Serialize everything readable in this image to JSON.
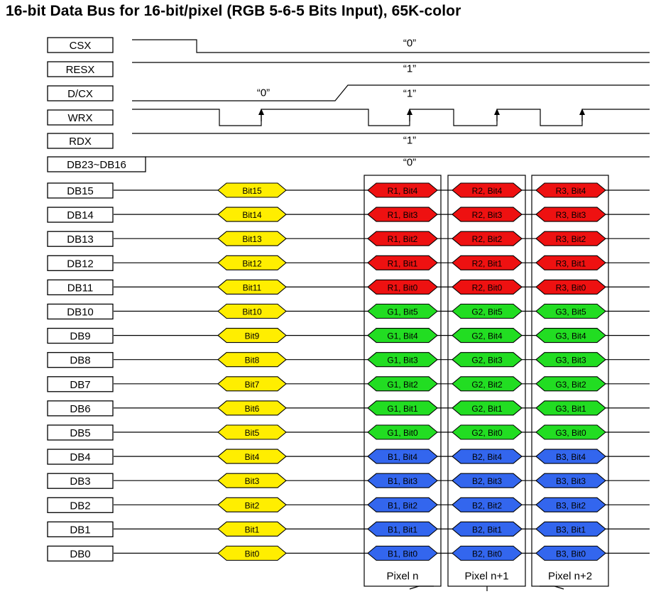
{
  "title": "16-bit Data Bus for 16-bit/pixel (RGB 5-6-5 Bits Input), 65K-color",
  "colors": {
    "red": "#ee1111",
    "green": "#22dd22",
    "blue": "#3366ee",
    "yellow": "#ffee00",
    "line": "#000000"
  },
  "control_signals": [
    {
      "name": "CSX",
      "value_label": "“0”"
    },
    {
      "name": "RESX",
      "value_label": "“1”"
    },
    {
      "name": "D/CX",
      "value_labels": [
        "“0”",
        "“1”"
      ]
    },
    {
      "name": "WRX",
      "value_label": ""
    },
    {
      "name": "RDX",
      "value_label": "“1”"
    },
    {
      "name": "DB23~DB16",
      "value_label": "“0”"
    }
  ],
  "data_lines": [
    {
      "name": "DB15",
      "bit": "Bit15",
      "p1": "R1, Bit4",
      "p2": "R2, Bit4",
      "p3": "R3, Bit4",
      "color": "red"
    },
    {
      "name": "DB14",
      "bit": "Bit14",
      "p1": "R1, Bit3",
      "p2": "R2, Bit3",
      "p3": "R3, Bit3",
      "color": "red"
    },
    {
      "name": "DB13",
      "bit": "Bit13",
      "p1": "R1, Bit2",
      "p2": "R2, Bit2",
      "p3": "R3, Bit2",
      "color": "red"
    },
    {
      "name": "DB12",
      "bit": "Bit12",
      "p1": "R1, Bit1",
      "p2": "R2, Bit1",
      "p3": "R3, Bit1",
      "color": "red"
    },
    {
      "name": "DB11",
      "bit": "Bit11",
      "p1": "R1, Bit0",
      "p2": "R2, Bit0",
      "p3": "R3, Bit0",
      "color": "red"
    },
    {
      "name": "DB10",
      "bit": "Bit10",
      "p1": "G1, Bit5",
      "p2": "G2, Bit5",
      "p3": "G3, Bit5",
      "color": "green"
    },
    {
      "name": "DB9",
      "bit": "Bit9",
      "p1": "G1, Bit4",
      "p2": "G2, Bit4",
      "p3": "G3, Bit4",
      "color": "green"
    },
    {
      "name": "DB8",
      "bit": "Bit8",
      "p1": "G1, Bit3",
      "p2": "G2, Bit3",
      "p3": "G3, Bit3",
      "color": "green"
    },
    {
      "name": "DB7",
      "bit": "Bit7",
      "p1": "G1, Bit2",
      "p2": "G2, Bit2",
      "p3": "G3, Bit2",
      "color": "green"
    },
    {
      "name": "DB6",
      "bit": "Bit6",
      "p1": "G1, Bit1",
      "p2": "G2, Bit1",
      "p3": "G3, Bit1",
      "color": "green"
    },
    {
      "name": "DB5",
      "bit": "Bit5",
      "p1": "G1, Bit0",
      "p2": "G2, Bit0",
      "p3": "G3, Bit0",
      "color": "green"
    },
    {
      "name": "DB4",
      "bit": "Bit4",
      "p1": "B1, Bit4",
      "p2": "B2, Bit4",
      "p3": "B3, Bit4",
      "color": "blue"
    },
    {
      "name": "DB3",
      "bit": "Bit3",
      "p1": "B1, Bit3",
      "p2": "B2, Bit3",
      "p3": "B3, Bit3",
      "color": "blue"
    },
    {
      "name": "DB2",
      "bit": "Bit2",
      "p1": "B1, Bit2",
      "p2": "B2, Bit2",
      "p3": "B3, Bit2",
      "color": "blue"
    },
    {
      "name": "DB1",
      "bit": "Bit1",
      "p1": "B1, Bit1",
      "p2": "B2, Bit1",
      "p3": "B3, Bit1",
      "color": "blue"
    },
    {
      "name": "DB0",
      "bit": "Bit0",
      "p1": "B1, Bit0",
      "p2": "B2, Bit0",
      "p3": "B3, Bit0",
      "color": "blue"
    }
  ],
  "pixel_columns": [
    "Pixel n",
    "Pixel n+1",
    "Pixel n+2"
  ]
}
